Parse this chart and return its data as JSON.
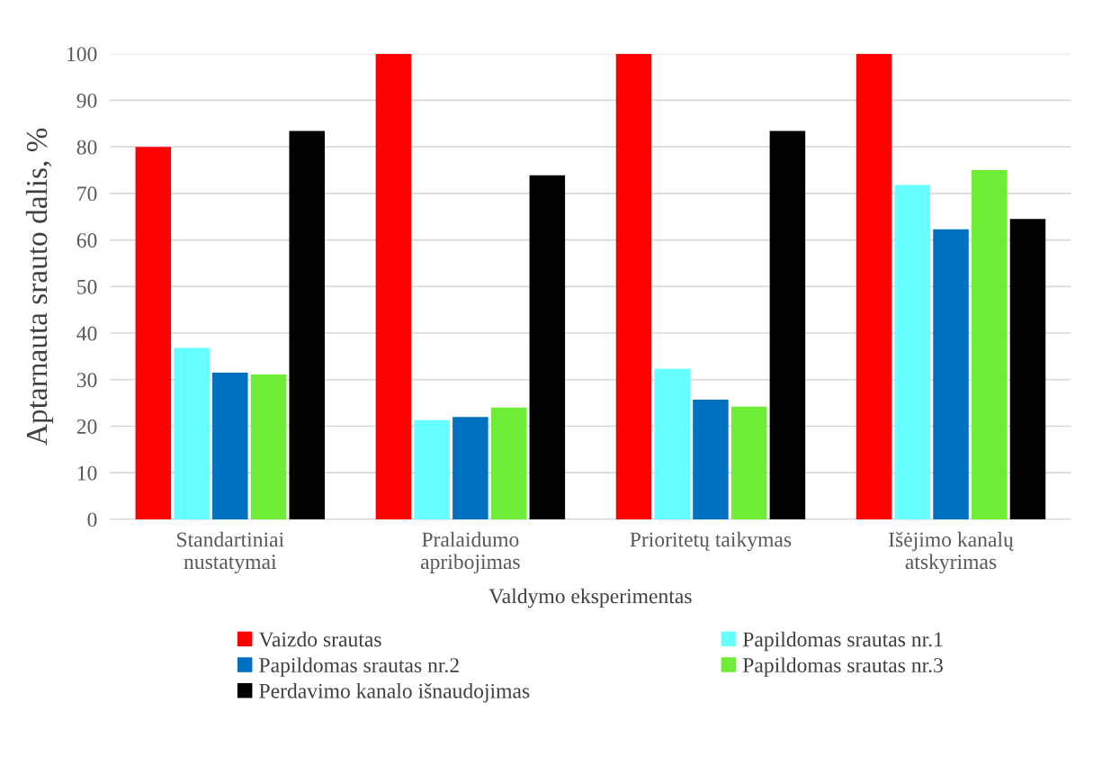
{
  "chart_data": {
    "type": "bar",
    "xlabel": "Valdymo eksperimentas",
    "ylabel": "Aptarnauta srauto dalis, %",
    "categories": [
      "Standartiniai\nnustatymai",
      "Pralaidumo\napribojimas",
      "Prioritetų taikymas",
      "Išėjimo kanalų\natskyrimas"
    ],
    "series": [
      {
        "name": "Vaizdo srautas",
        "color": "#ff0000",
        "values": [
          80,
          100,
          100,
          100
        ]
      },
      {
        "name": "Papildomas srautas nr.1",
        "color": "#66ffff",
        "values": [
          36.8,
          21.3,
          32.3,
          71.8
        ]
      },
      {
        "name": "Papildomas srautas nr.2",
        "color": "#0070c0",
        "values": [
          31.5,
          22.0,
          25.7,
          62.3
        ]
      },
      {
        "name": "Papildomas srautas nr.3",
        "color": "#6ded35",
        "values": [
          31.1,
          24.0,
          24.2,
          75.0
        ]
      },
      {
        "name": "Perdavimo kanalo išnaudojimas",
        "color": "#000000",
        "values": [
          83.4,
          73.9,
          83.4,
          64.5
        ]
      }
    ],
    "ylim": [
      0,
      100
    ],
    "yticks": [
      0,
      10,
      20,
      30,
      40,
      50,
      60,
      70,
      80,
      90,
      100
    ],
    "grid": "y",
    "legend": "bottom"
  }
}
